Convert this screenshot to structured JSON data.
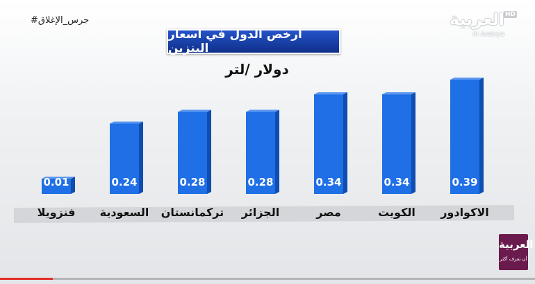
{
  "overlay": {
    "hashtag": "#جرس_الإغلاق",
    "logo_text": "العربية",
    "logo_latin": "Al Arabiya",
    "logo_hd": "HD",
    "badge_title": "العربية",
    "badge_tagline": "أن تعرف أكثر"
  },
  "chart_data": {
    "type": "bar",
    "title": "أرخص الدول في أسعار البنزين",
    "unit": "دولار /لتر",
    "categories": [
      "فنزويلا",
      "السعودية",
      "تركمانستان",
      "الجزائر",
      "مصر",
      "الكويت",
      "الاكوادور"
    ],
    "values": [
      0.01,
      0.24,
      0.28,
      0.28,
      0.34,
      0.34,
      0.39
    ],
    "value_labels": [
      "0.01",
      "0.24",
      "0.28",
      "0.28",
      "0.34",
      "0.34",
      "0.39"
    ],
    "grid": false,
    "bar_color": "#1f6fe6",
    "bar_color_dark": "#0f4db0"
  }
}
